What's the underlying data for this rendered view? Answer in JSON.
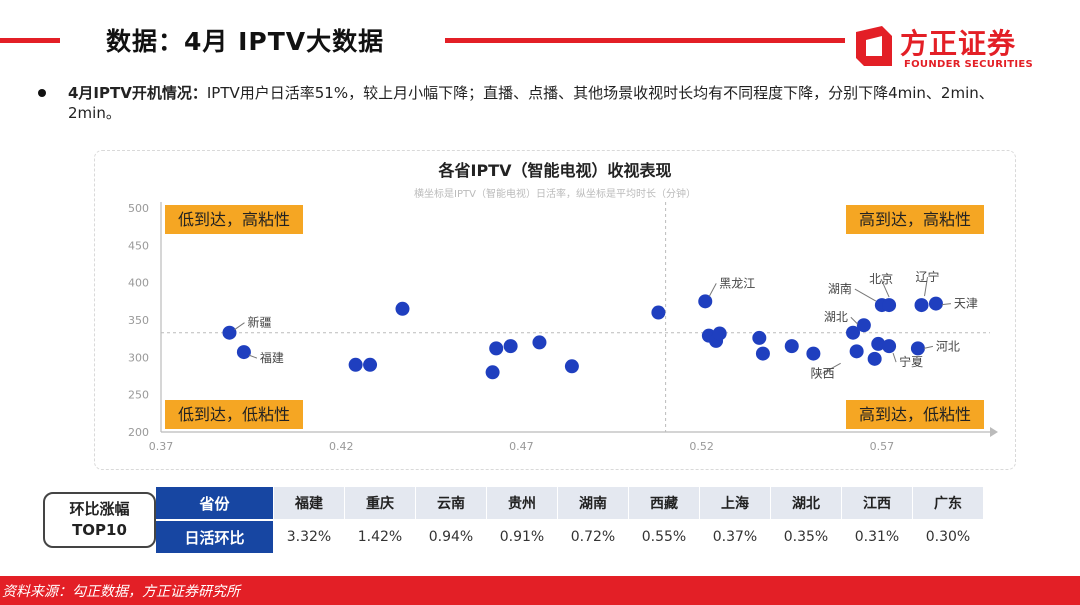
{
  "header": {
    "title": "数据：4月 IPTV大数据",
    "logo_cn": "方正证券",
    "logo_en": "FOUNDER SECURITIES"
  },
  "bullet": {
    "label": "4月IPTV开机情况：",
    "text": "IPTV用户日活率51%，较上月小幅下降；直播、点播、其他场景收视时长均有不同程度下降，分别下降4min、2min、2min。"
  },
  "chart_data": {
    "type": "scatter",
    "title": "各省IPTV（智能电视）收视表现",
    "subtitle": "横坐标是IPTV（智能电视）日活率，纵坐标是平均时长（分钟）",
    "xlim": [
      0.37,
      0.6
    ],
    "ylim": [
      200,
      500
    ],
    "x_ticks": [
      "0.37",
      "0.42",
      "0.47",
      "0.52",
      "0.57"
    ],
    "y_ticks": [
      "500",
      "450",
      "400",
      "350",
      "300",
      "250",
      "200"
    ],
    "divider_x": 0.51,
    "divider_y": 333,
    "grid": false,
    "quadrants": [
      "低到达，高粘性",
      "高到达，高粘性",
      "低到达，低粘性",
      "高到达，低粘性"
    ],
    "color": "#1f3fbf",
    "points": [
      {
        "x": 0.389,
        "y": 333,
        "label": "新疆"
      },
      {
        "x": 0.393,
        "y": 307,
        "label": "福建"
      },
      {
        "x": 0.424,
        "y": 290,
        "label": ""
      },
      {
        "x": 0.428,
        "y": 290,
        "label": ""
      },
      {
        "x": 0.437,
        "y": 365,
        "label": ""
      },
      {
        "x": 0.462,
        "y": 280,
        "label": ""
      },
      {
        "x": 0.463,
        "y": 312,
        "label": ""
      },
      {
        "x": 0.467,
        "y": 315,
        "label": ""
      },
      {
        "x": 0.475,
        "y": 320,
        "label": ""
      },
      {
        "x": 0.484,
        "y": 288,
        "label": ""
      },
      {
        "x": 0.508,
        "y": 360,
        "label": ""
      },
      {
        "x": 0.521,
        "y": 375,
        "label": "黑龙江"
      },
      {
        "x": 0.522,
        "y": 329,
        "label": ""
      },
      {
        "x": 0.524,
        "y": 322,
        "label": ""
      },
      {
        "x": 0.525,
        "y": 332,
        "label": ""
      },
      {
        "x": 0.536,
        "y": 326,
        "label": ""
      },
      {
        "x": 0.537,
        "y": 305,
        "label": ""
      },
      {
        "x": 0.545,
        "y": 315,
        "label": ""
      },
      {
        "x": 0.551,
        "y": 305,
        "label": ""
      },
      {
        "x": 0.562,
        "y": 333,
        "label": ""
      },
      {
        "x": 0.563,
        "y": 308,
        "label": "陕西"
      },
      {
        "x": 0.565,
        "y": 343,
        "label": "湖北"
      },
      {
        "x": 0.568,
        "y": 298,
        "label": ""
      },
      {
        "x": 0.569,
        "y": 318,
        "label": ""
      },
      {
        "x": 0.572,
        "y": 315,
        "label": "宁夏"
      },
      {
        "x": 0.57,
        "y": 370,
        "label": "湖南"
      },
      {
        "x": 0.572,
        "y": 370,
        "label": "北京"
      },
      {
        "x": 0.58,
        "y": 312,
        "label": "河北"
      },
      {
        "x": 0.581,
        "y": 370,
        "label": "辽宁"
      },
      {
        "x": 0.585,
        "y": 372,
        "label": "天津"
      }
    ]
  },
  "table": {
    "label": "环比涨幅\nTOP10",
    "header_row": "省份",
    "value_row": "日活环比",
    "provinces": [
      "福建",
      "重庆",
      "云南",
      "贵州",
      "湖南",
      "西藏",
      "上海",
      "湖北",
      "江西",
      "广东"
    ],
    "values": [
      "3.32%",
      "1.42%",
      "0.94%",
      "0.91%",
      "0.72%",
      "0.55%",
      "0.37%",
      "0.35%",
      "0.31%",
      "0.30%"
    ]
  },
  "footer": {
    "source": "资料来源：勾正数据，方正证券研究所"
  }
}
